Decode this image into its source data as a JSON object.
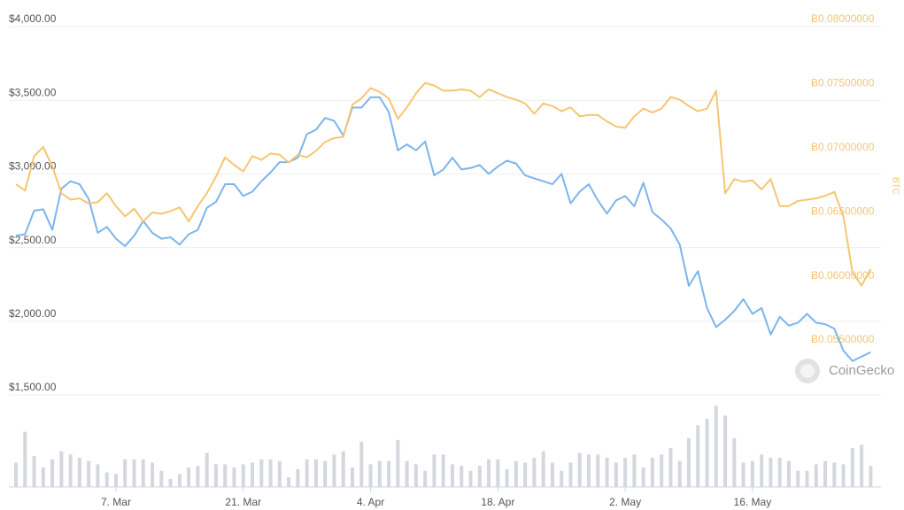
{
  "chart_data": {
    "type": "line",
    "categories": [
      "24. Feb",
      "25. Feb",
      "26. Feb",
      "27. Feb",
      "28. Feb",
      "1. Mar",
      "2. Mar",
      "3. Mar",
      "4. Mar",
      "5. Mar",
      "6. Mar",
      "7. Mar",
      "8. Mar",
      "9. Mar",
      "10. Mar",
      "11. Mar",
      "12. Mar",
      "13. Mar",
      "14. Mar",
      "15. Mar",
      "16. Mar",
      "17. Mar",
      "18. Mar",
      "19. Mar",
      "20. Mar",
      "21. Mar",
      "22. Mar",
      "23. Mar",
      "24. Mar",
      "25. Mar",
      "26. Mar",
      "27. Mar",
      "28. Mar",
      "29. Mar",
      "30. Mar",
      "31. Mar",
      "1. Apr",
      "2. Apr",
      "3. Apr",
      "4. Apr",
      "5. Apr",
      "6. Apr",
      "7. Apr",
      "8. Apr",
      "9. Apr",
      "10. Apr",
      "11. Apr",
      "12. Apr",
      "13. Apr",
      "14. Apr",
      "15. Apr",
      "16. Apr",
      "17. Apr",
      "18. Apr",
      "19. Apr",
      "20. Apr",
      "21. Apr",
      "22. Apr",
      "23. Apr",
      "24. Apr",
      "25. Apr",
      "26. Apr",
      "27. Apr",
      "28. Apr",
      "29. Apr",
      "30. Apr",
      "1. May",
      "2. May",
      "3. May",
      "4. May",
      "5. May",
      "6. May",
      "7. May",
      "8. May",
      "9. May",
      "10. May",
      "11. May",
      "12. May",
      "13. May",
      "14. May",
      "15. May",
      "16. May",
      "17. May",
      "18. May",
      "19. May",
      "20. May",
      "21. May",
      "22. May",
      "23. May",
      "24. May",
      "25. May",
      "26. May",
      "27. May",
      "28. May",
      "29. May"
    ],
    "series": [
      {
        "color": "#7cb5ec",
        "values": [
          2580,
          2590,
          2750,
          2760,
          2620,
          2900,
          2950,
          2930,
          2830,
          2600,
          2640,
          2560,
          2510,
          2580,
          2680,
          2600,
          2560,
          2570,
          2520,
          2590,
          2620,
          2770,
          2810,
          2930,
          2930,
          2850,
          2880,
          2950,
          3010,
          3080,
          3080,
          3110,
          3270,
          3300,
          3380,
          3360,
          3260,
          3450,
          3450,
          3520,
          3520,
          3420,
          3160,
          3200,
          3160,
          3220,
          2990,
          3030,
          3110,
          3030,
          3040,
          3060,
          3000,
          3050,
          3090,
          3070,
          2990,
          2970,
          2950,
          2930,
          3000,
          2800,
          2880,
          2930,
          2820,
          2730,
          2820,
          2850,
          2780,
          2940,
          2740,
          2690,
          2630,
          2520,
          2240,
          2340,
          2090,
          1960,
          2010,
          2070,
          2150,
          2050,
          2090,
          1910,
          2030,
          1970,
          1990,
          2050,
          1990,
          1980,
          1950,
          1800,
          1730,
          1760,
          1790
        ]
      },
      {
        "color": "#f7c572",
        "axis": "y2",
        "values": [
          0.0677,
          0.0672,
          0.0699,
          0.0706,
          0.0691,
          0.067,
          0.0665,
          0.0666,
          0.0662,
          0.0663,
          0.067,
          0.066,
          0.0652,
          0.0658,
          0.0648,
          0.0655,
          0.0654,
          0.0656,
          0.0659,
          0.0648,
          0.066,
          0.067,
          0.0683,
          0.0698,
          0.0692,
          0.0687,
          0.0699,
          0.0696,
          0.0701,
          0.07,
          0.0694,
          0.07,
          0.0698,
          0.0703,
          0.071,
          0.0713,
          0.0714,
          0.0739,
          0.0744,
          0.0752,
          0.0749,
          0.0744,
          0.0728,
          0.0737,
          0.0748,
          0.0756,
          0.0754,
          0.075,
          0.075,
          0.0751,
          0.075,
          0.0745,
          0.0751,
          0.0748,
          0.0745,
          0.0743,
          0.074,
          0.0732,
          0.074,
          0.0738,
          0.0734,
          0.0737,
          0.073,
          0.0731,
          0.0731,
          0.0726,
          0.0722,
          0.0721,
          0.073,
          0.0736,
          0.0733,
          0.0736,
          0.0745,
          0.0743,
          0.0738,
          0.0734,
          0.0736,
          0.075,
          0.067,
          0.0681,
          0.0679,
          0.068,
          0.0673,
          0.0681,
          0.066,
          0.066,
          0.0664,
          0.0665,
          0.0666,
          0.0668,
          0.0671,
          0.0652,
          0.0608,
          0.0598,
          0.0611
        ]
      }
    ],
    "volumes": [
      15,
      34,
      19,
      12,
      17,
      22,
      20,
      18,
      16,
      14,
      9,
      8,
      17,
      17,
      17,
      15,
      10,
      5,
      8,
      12,
      13,
      21,
      14,
      14,
      12,
      14,
      15,
      17,
      17,
      16,
      6,
      11,
      17,
      17,
      16,
      20,
      22,
      12,
      28,
      14,
      16,
      16,
      29,
      16,
      14,
      10,
      20,
      20,
      14,
      13,
      10,
      13,
      17,
      17,
      11,
      16,
      15,
      18,
      22,
      15,
      10,
      15,
      21,
      20,
      20,
      18,
      15,
      18,
      20,
      12,
      18,
      20,
      24,
      16,
      30,
      38,
      42,
      50,
      44,
      30,
      15,
      16,
      20,
      18,
      18,
      16,
      10,
      10,
      14,
      16,
      15,
      14,
      24,
      26,
      13
    ],
    "volume_color": "#d4d7dd",
    "vlim": [
      0,
      60
    ],
    "ylim": [
      1500,
      4000
    ],
    "yticks": [
      {
        "value": 1500,
        "label": "$1,500.00"
      },
      {
        "value": 2000,
        "label": "$2,000.00"
      },
      {
        "value": 2500,
        "label": "$2,500.00"
      },
      {
        "value": 3000,
        "label": "$3,000.00"
      },
      {
        "value": 3500,
        "label": "$3,500.00"
      },
      {
        "value": 4000,
        "label": "$4,000.00"
      }
    ],
    "y2lim": [
      0.05,
      0.08
    ],
    "y2ticks": [
      {
        "value": 0.055,
        "label": "Ƀ0.05500000"
      },
      {
        "value": 0.06,
        "label": "Ƀ0.06000000"
      },
      {
        "value": 0.065,
        "label": "Ƀ0.06500000"
      },
      {
        "value": 0.07,
        "label": "Ƀ0.07000000"
      },
      {
        "value": 0.075,
        "label": "Ƀ0.07500000"
      },
      {
        "value": 0.08,
        "label": "Ƀ0.08000000"
      }
    ],
    "y2label": "BTC",
    "xticks": [
      "7. Mar",
      "21. Mar",
      "4. Apr",
      "18. Apr",
      "2. May",
      "16. May"
    ],
    "grid": true,
    "watermark": "CoinGecko"
  }
}
